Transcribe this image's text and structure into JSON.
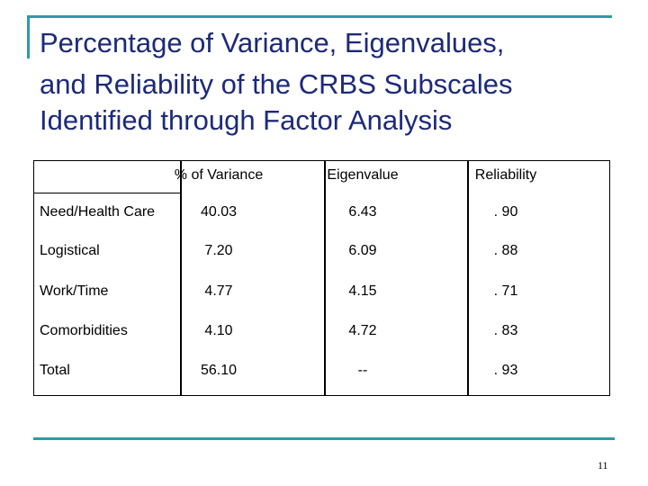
{
  "header": {
    "title": [
      "Percentage of Variance, Eigenvalues,",
      "and Reliability of the CRBS Subscales",
      "Identified through Factor Analysis"
    ]
  },
  "table": {
    "columns": [
      "% of Variance",
      "Eigenvalue",
      "Reliability"
    ],
    "rows": [
      [
        "Need/Health Care",
        "40.03",
        "6.43",
        ". 90"
      ],
      [
        "Logistical",
        "7.20",
        "6.09",
        ". 88"
      ],
      [
        "Work/Time",
        "4.77",
        "4.15",
        ". 71"
      ],
      [
        "Comorbidities",
        "4.10",
        "4.72",
        ". 83"
      ],
      [
        "Total",
        "56.10",
        "--",
        ". 93"
      ]
    ]
  },
  "footer": {
    "page_number": "11"
  }
}
